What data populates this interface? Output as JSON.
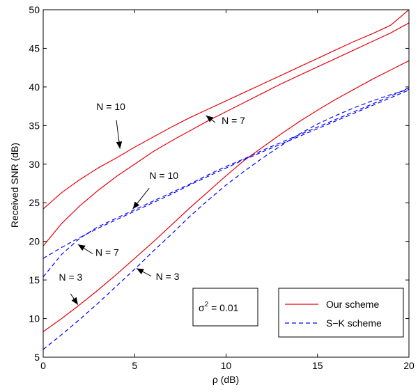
{
  "chart_data": {
    "type": "line",
    "xlabel": "ρ (dB)",
    "ylabel": "Received SNR (dB)",
    "xlim": [
      0,
      20
    ],
    "ylim": [
      5,
      50
    ],
    "xticks": [
      "0",
      "5",
      "10",
      "15",
      "20"
    ],
    "yticks": [
      "5",
      "10",
      "15",
      "20",
      "25",
      "30",
      "35",
      "40",
      "45",
      "50"
    ],
    "grid": false,
    "legend": {
      "position": "bottom-right",
      "entries": [
        {
          "label": "Our scheme",
          "color": "#e8000b",
          "style": "solid"
        },
        {
          "label": "S−K scheme",
          "color": "#0000ff",
          "style": "dashed"
        }
      ]
    },
    "textbox": {
      "base": "σ",
      "sup": "2",
      "rest": " = 0.01"
    },
    "series": [
      {
        "legend": "Our scheme",
        "color": "#e8000b",
        "style": "solid",
        "x": [
          0,
          1,
          2,
          3,
          4,
          5,
          6,
          7,
          8,
          9,
          10,
          11,
          12,
          13,
          14,
          15,
          16,
          17,
          18,
          19,
          20
        ],
        "y": [
          24.2,
          26.3,
          28.0,
          29.5,
          30.8,
          32.2,
          33.5,
          34.8,
          36.0,
          37.1,
          38.2,
          39.3,
          40.4,
          41.5,
          42.6,
          43.7,
          44.8,
          45.9,
          46.9,
          48.0,
          50.0
        ]
      },
      {
        "legend": "Our scheme",
        "color": "#e8000b",
        "style": "solid",
        "x": [
          0,
          1,
          2,
          3,
          4,
          5,
          6,
          7,
          8,
          9,
          10,
          11,
          12,
          13,
          14,
          15,
          16,
          17,
          18,
          19,
          20
        ],
        "y": [
          19.4,
          22.3,
          24.6,
          26.6,
          28.4,
          30.0,
          31.6,
          33.0,
          34.3,
          35.6,
          36.8,
          38.0,
          39.2,
          40.4,
          41.5,
          42.6,
          43.7,
          44.8,
          45.9,
          47.0,
          48.3
        ]
      },
      {
        "legend": "Our scheme",
        "color": "#e8000b",
        "style": "solid",
        "x": [
          0,
          1,
          2,
          3,
          4,
          5,
          6,
          7,
          8,
          9,
          10,
          11,
          12,
          13,
          14,
          15,
          16,
          17,
          18,
          19,
          20
        ],
        "y": [
          8.3,
          10.0,
          11.8,
          13.7,
          15.7,
          17.8,
          19.9,
          22.1,
          24.3,
          26.4,
          28.5,
          30.5,
          32.2,
          33.9,
          35.5,
          37.0,
          38.4,
          39.7,
          41.0,
          42.2,
          43.4
        ]
      },
      {
        "legend": "S−K scheme",
        "color": "#0000ff",
        "style": "dashed",
        "x": [
          0,
          1,
          2,
          3,
          4,
          5,
          6,
          7,
          8,
          9,
          10,
          11,
          12,
          13,
          14,
          15,
          16,
          17,
          18,
          19,
          20
        ],
        "y": [
          17.8,
          19.2,
          20.5,
          21.7,
          22.8,
          23.9,
          25.0,
          26.1,
          27.3,
          28.4,
          29.5,
          30.6,
          31.6,
          32.6,
          33.6,
          34.6,
          35.6,
          36.6,
          37.6,
          38.6,
          39.6
        ]
      },
      {
        "legend": "S−K scheme",
        "color": "#0000ff",
        "style": "dashed",
        "x": [
          0,
          1,
          2,
          3,
          4,
          5,
          6,
          7,
          8,
          9,
          10,
          11,
          12,
          13,
          14,
          15,
          16,
          17,
          18,
          19,
          20
        ],
        "y": [
          15.4,
          18.3,
          20.4,
          21.9,
          23.0,
          24.1,
          25.2,
          26.3,
          27.4,
          28.6,
          29.7,
          30.7,
          31.8,
          32.8,
          33.8,
          34.8,
          35.8,
          36.8,
          37.8,
          38.8,
          39.9
        ]
      },
      {
        "legend": "S−K scheme",
        "color": "#0000ff",
        "style": "dashed",
        "x": [
          0,
          1,
          2,
          3,
          4,
          5,
          6,
          7,
          8,
          9,
          10,
          11,
          12,
          13,
          14,
          15,
          16,
          17,
          18,
          19,
          20
        ],
        "y": [
          6.0,
          7.9,
          9.9,
          12.0,
          14.2,
          16.4,
          18.7,
          20.9,
          23.2,
          25.3,
          27.3,
          29.1,
          30.8,
          32.4,
          33.9,
          35.2,
          36.3,
          37.3,
          38.2,
          39.0,
          39.7
        ]
      }
    ],
    "annotations": [
      {
        "label": "N = 10",
        "text_at": [
          3.7,
          37.0
        ],
        "arrow_from": [
          4.0,
          35.7
        ],
        "arrow_to": [
          4.2,
          32.0
        ]
      },
      {
        "label": "N = 7",
        "text_at": [
          10.4,
          35.2
        ],
        "arrow_from": [
          9.4,
          35.4
        ],
        "arrow_to": [
          8.9,
          36.3
        ]
      },
      {
        "label": "N = 10",
        "text_at": [
          6.6,
          28.1
        ],
        "arrow_from": [
          5.8,
          26.9
        ],
        "arrow_to": [
          4.9,
          24.2
        ]
      },
      {
        "label": "N = 7",
        "text_at": [
          3.5,
          18.1
        ],
        "arrow_from": [
          2.7,
          18.4
        ],
        "arrow_to": [
          1.9,
          19.6
        ]
      },
      {
        "label": "N = 3",
        "text_at": [
          1.5,
          14.9
        ],
        "arrow_from": [
          1.5,
          13.2
        ],
        "arrow_to": [
          1.9,
          11.8
        ]
      },
      {
        "label": "N = 3",
        "text_at": [
          6.8,
          15.0
        ],
        "arrow_from": [
          5.9,
          15.5
        ],
        "arrow_to": [
          5.1,
          16.5
        ]
      }
    ]
  }
}
